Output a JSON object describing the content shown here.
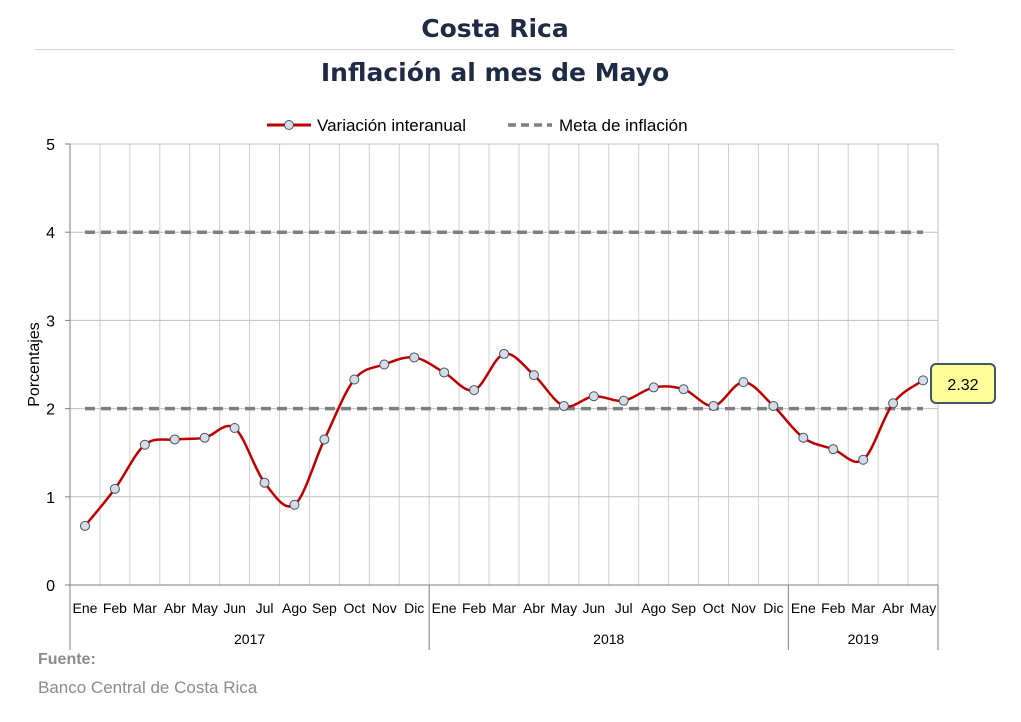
{
  "header": {
    "title": "Costa Rica",
    "subtitle": "Inflación al mes de Mayo"
  },
  "source": {
    "label": "Fuente:",
    "text": "Banco Central de Costa Rica"
  },
  "chart_data": {
    "type": "line",
    "title": "Inflación al mes de Mayo",
    "xlabel": "",
    "ylabel": "Porcentajes",
    "ylim": [
      0,
      5
    ],
    "yticks": [
      "0",
      "1",
      "2",
      "3",
      "4",
      "5"
    ],
    "grid": true,
    "legend": "top",
    "categories": [
      "Ene",
      "Feb",
      "Mar",
      "Abr",
      "May",
      "Jun",
      "Jul",
      "Ago",
      "Sep",
      "Oct",
      "Nov",
      "Dic",
      "Ene",
      "Feb",
      "Mar",
      "Abr",
      "May",
      "Jun",
      "Jul",
      "Ago",
      "Sep",
      "Oct",
      "Nov",
      "Dic",
      "Ene",
      "Feb",
      "Mar",
      "Abr",
      "May"
    ],
    "groups": [
      {
        "label": "2017",
        "count": 12
      },
      {
        "label": "2018",
        "count": 12
      },
      {
        "label": "2019",
        "count": 5
      }
    ],
    "series": [
      {
        "name": "Variación interanual",
        "color": "#c00000",
        "values": [
          0.67,
          1.09,
          1.59,
          1.65,
          1.67,
          1.78,
          1.16,
          0.91,
          1.65,
          2.33,
          2.5,
          2.58,
          2.41,
          2.21,
          2.62,
          2.38,
          2.03,
          2.14,
          2.09,
          2.24,
          2.22,
          2.03,
          2.3,
          2.03,
          1.67,
          1.54,
          1.42,
          2.06,
          2.32
        ]
      },
      {
        "name": "Meta de inflación",
        "color": "#7f7f7f",
        "lower": 2,
        "upper": 4
      }
    ],
    "callout": "2.32"
  }
}
